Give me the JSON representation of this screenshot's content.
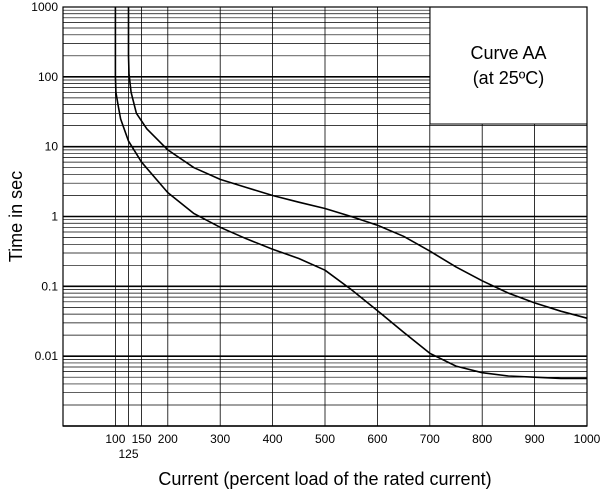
{
  "chart_data": {
    "type": "line",
    "title": "Curve AA",
    "subtitle": "(at 25ºC)",
    "xlabel": "Current (percent load of the rated current)",
    "ylabel": "Time in sec",
    "y_scale": "log",
    "x_scale": "linear",
    "xlim": [
      0,
      1000
    ],
    "ylim": [
      0.001,
      1000
    ],
    "x_ticks": [
      {
        "value": 100,
        "label": "100"
      },
      {
        "value": 125,
        "label": "125"
      },
      {
        "value": 150,
        "label": "150"
      },
      {
        "value": 200,
        "label": "200"
      },
      {
        "value": 300,
        "label": "300"
      },
      {
        "value": 400,
        "label": "400"
      },
      {
        "value": 500,
        "label": "500"
      },
      {
        "value": 600,
        "label": "600"
      },
      {
        "value": 700,
        "label": "700"
      },
      {
        "value": 800,
        "label": "800"
      },
      {
        "value": 900,
        "label": "900"
      },
      {
        "value": 1000,
        "label": "1000"
      }
    ],
    "y_ticks": [
      {
        "value": 1000,
        "label": "1000"
      },
      {
        "value": 100,
        "label": "100"
      },
      {
        "value": 10,
        "label": "10"
      },
      {
        "value": 1,
        "label": "1"
      },
      {
        "value": 0.1,
        "label": "0.1"
      },
      {
        "value": 0.01,
        "label": "0.01"
      }
    ],
    "grid": true,
    "legend_position": "top-right",
    "series": [
      {
        "x": [
          125,
          125,
          126,
          130,
          140,
          160,
          200,
          250,
          300,
          350,
          400,
          450,
          500,
          550,
          600,
          650,
          700,
          750,
          800,
          850,
          900,
          950,
          1000
        ],
        "y": [
          1000,
          200,
          110,
          60,
          30,
          18,
          9,
          5,
          3.4,
          2.6,
          2,
          1.6,
          1.3,
          1,
          0.75,
          0.52,
          0.32,
          0.19,
          0.12,
          0.08,
          0.058,
          0.044,
          0.035
        ]
      },
      {
        "x": [
          100,
          100,
          101,
          105,
          110,
          125,
          150,
          200,
          250,
          300,
          350,
          400,
          450,
          500,
          550,
          600,
          650,
          700,
          750,
          800,
          850,
          900,
          950,
          1000
        ],
        "y": [
          1000,
          100,
          60,
          40,
          25,
          12,
          6,
          2.2,
          1.1,
          0.7,
          0.48,
          0.34,
          0.25,
          0.17,
          0.09,
          0.045,
          0.022,
          0.011,
          0.0072,
          0.0058,
          0.0052,
          0.005,
          0.0048,
          0.0048
        ]
      }
    ]
  }
}
